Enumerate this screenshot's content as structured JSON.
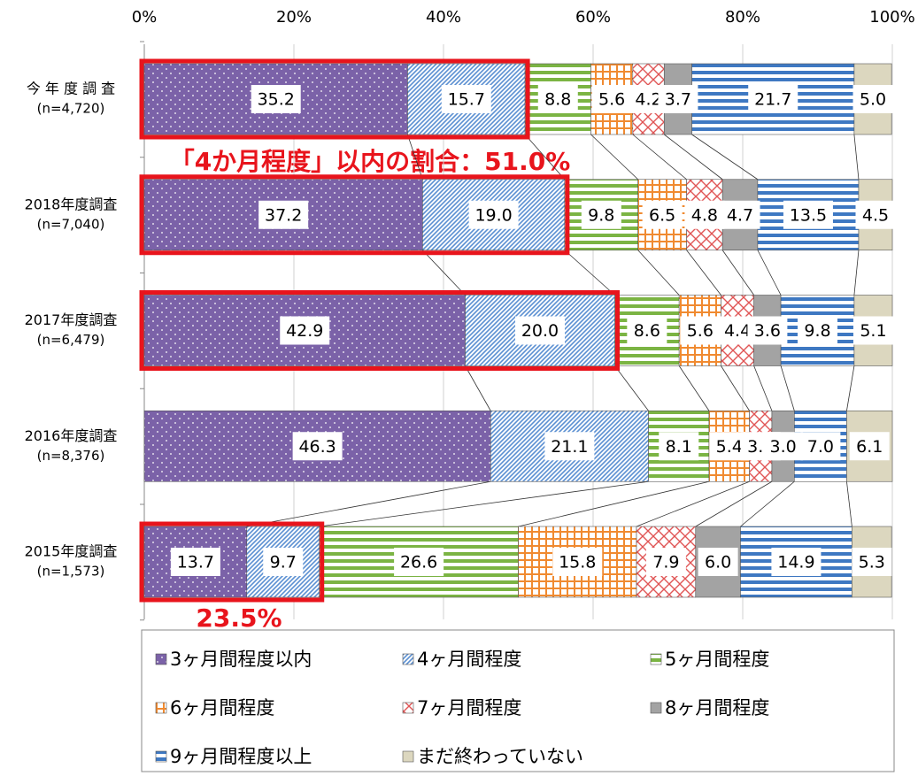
{
  "chart_data": {
    "type": "stacked_bar_horizontal",
    "categories": [
      "今 年 度 調 査",
      "2018年度調査",
      "2017年度調査",
      "2016年度調査",
      "2015年度調査"
    ],
    "sample_sizes": [
      "(n=4,720)",
      "(n=7,040)",
      "(n=6,479)",
      "(n=8,376)",
      "(n=1,573)"
    ],
    "xlim": [
      0,
      100
    ],
    "xticks": [
      {
        "value": 0,
        "label": "0%"
      },
      {
        "value": 20,
        "label": "20%"
      },
      {
        "value": 40,
        "label": "40%"
      },
      {
        "value": 60,
        "label": "60%"
      },
      {
        "value": 80,
        "label": "80%"
      },
      {
        "value": 100,
        "label": "100%"
      }
    ],
    "grid": true,
    "series": [
      {
        "name": "3ヶ月間程度以内",
        "color": "#7b62a8",
        "pattern": "dots",
        "values": [
          35.2,
          37.2,
          42.9,
          46.3,
          13.7
        ],
        "value_labels": [
          "35.2",
          "37.2",
          "42.9",
          "46.3",
          "13.7"
        ]
      },
      {
        "name": "4ヶ月間程度",
        "color": "#5a8fd2",
        "pattern": "diagonal",
        "values": [
          15.7,
          19.0,
          20.0,
          21.1,
          9.7
        ],
        "value_labels": [
          "15.7",
          "19.0",
          "20.0",
          "21.1",
          "9.7"
        ]
      },
      {
        "name": "5ヶ月間程度",
        "color": "#7bb443",
        "pattern": "hstripes",
        "values": [
          8.8,
          9.8,
          8.6,
          8.1,
          26.6
        ],
        "value_labels": [
          "8.8",
          "9.8",
          "8.6",
          "8.1",
          "26.6"
        ]
      },
      {
        "name": "6ヶ月間程度",
        "color": "#f08a30",
        "pattern": "grid",
        "values": [
          5.6,
          6.5,
          5.6,
          5.4,
          15.8
        ],
        "value_labels": [
          "5.6",
          "6.5",
          "5.6",
          "5.4",
          "15.8"
        ]
      },
      {
        "name": "7ヶ月間程度",
        "color": "#e05555",
        "pattern": "cross",
        "values": [
          4.2,
          4.8,
          4.4,
          3.0,
          7.9
        ],
        "value_labels": [
          "4.2",
          "4.8",
          "4.4",
          "3.0",
          "7.9"
        ]
      },
      {
        "name": "8ヶ月間程度",
        "color": "#a3a3a3",
        "pattern": "solid",
        "values": [
          3.7,
          4.7,
          3.6,
          3.0,
          6.0
        ],
        "value_labels": [
          "3.7",
          "4.7",
          "3.6",
          "3.0",
          "6.0"
        ]
      },
      {
        "name": "9ヶ月間程度以上",
        "color": "#3e78c2",
        "pattern": "hstripes",
        "values": [
          21.7,
          13.5,
          9.8,
          7.0,
          14.9
        ],
        "value_labels": [
          "21.7",
          "13.5",
          "9.8",
          "7.0",
          "14.9"
        ]
      },
      {
        "name": "まだ終わっていない",
        "color": "#dcd7bf",
        "pattern": "solid",
        "values": [
          5.0,
          4.5,
          5.1,
          6.1,
          5.3
        ],
        "value_labels": [
          "5.0",
          "4.5",
          "5.1",
          "6.1",
          "5.3"
        ]
      }
    ],
    "annotations": [
      "「4か月程度」以内の割合：51.0%",
      "23.5%"
    ]
  }
}
